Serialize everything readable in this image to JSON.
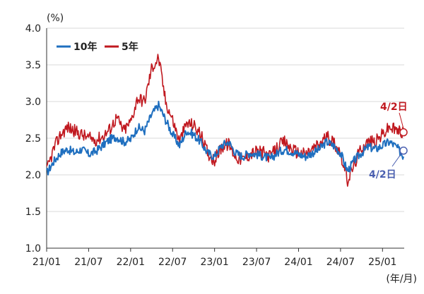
{
  "chart_data": {
    "type": "line",
    "y_unit": "(%)",
    "x_unit": "(年/月)",
    "ylim": [
      1.0,
      4.0
    ],
    "yticks": [
      "1.0",
      "1.5",
      "2.0",
      "2.5",
      "3.0",
      "3.5",
      "4.0"
    ],
    "xticks": [
      "21/01",
      "21/07",
      "22/01",
      "22/07",
      "23/01",
      "23/07",
      "24/01",
      "24/07",
      "25/01"
    ],
    "grid": "horizontal",
    "legend_position": "top-left",
    "series": [
      {
        "name": "10年",
        "color": "#1f6fbf",
        "x": [
          "21/01",
          "21/02",
          "21/03",
          "21/04",
          "21/05",
          "21/06",
          "21/07",
          "21/08",
          "21/09",
          "21/10",
          "21/11",
          "21/12",
          "22/01",
          "22/02",
          "22/03",
          "22/04",
          "22/05",
          "22/06",
          "22/07",
          "22/08",
          "22/09",
          "22/10",
          "22/11",
          "22/12",
          "23/01",
          "23/02",
          "23/03",
          "23/04",
          "23/05",
          "23/06",
          "23/07",
          "23/08",
          "23/09",
          "23/10",
          "23/11",
          "23/12",
          "24/01",
          "24/02",
          "24/03",
          "24/04",
          "24/05",
          "24/06",
          "24/07",
          "24/08",
          "24/09",
          "24/10",
          "24/11",
          "24/12",
          "25/01",
          "25/02",
          "25/03",
          "25/04"
        ],
        "values": [
          2.02,
          2.18,
          2.3,
          2.35,
          2.3,
          2.35,
          2.28,
          2.32,
          2.4,
          2.48,
          2.52,
          2.45,
          2.48,
          2.65,
          2.6,
          2.82,
          2.95,
          2.75,
          2.55,
          2.4,
          2.6,
          2.55,
          2.45,
          2.3,
          2.25,
          2.4,
          2.45,
          2.3,
          2.25,
          2.3,
          2.28,
          2.25,
          2.22,
          2.3,
          2.35,
          2.32,
          2.28,
          2.25,
          2.3,
          2.35,
          2.45,
          2.4,
          2.3,
          2.05,
          2.2,
          2.3,
          2.38,
          2.35,
          2.4,
          2.45,
          2.38,
          2.25
        ]
      },
      {
        "name": "5年",
        "color": "#c0181f",
        "x": [
          "21/01",
          "21/02",
          "21/03",
          "21/04",
          "21/05",
          "21/06",
          "21/07",
          "21/08",
          "21/09",
          "21/10",
          "21/11",
          "21/12",
          "22/01",
          "22/02",
          "22/03",
          "22/04",
          "22/05",
          "22/06",
          "22/07",
          "22/08",
          "22/09",
          "22/10",
          "22/11",
          "22/12",
          "23/01",
          "23/02",
          "23/03",
          "23/04",
          "23/05",
          "23/06",
          "23/07",
          "23/08",
          "23/09",
          "23/10",
          "23/11",
          "23/12",
          "24/01",
          "24/02",
          "24/03",
          "24/04",
          "24/05",
          "24/06",
          "24/07",
          "24/08",
          "24/09",
          "24/10",
          "24/11",
          "24/12",
          "25/01",
          "25/02",
          "25/03",
          "25/04"
        ],
        "values": [
          2.05,
          2.35,
          2.55,
          2.65,
          2.6,
          2.55,
          2.5,
          2.48,
          2.52,
          2.62,
          2.78,
          2.6,
          2.72,
          3.05,
          3.0,
          3.45,
          3.6,
          3.0,
          2.75,
          2.45,
          2.7,
          2.68,
          2.55,
          2.3,
          2.2,
          2.38,
          2.42,
          2.25,
          2.2,
          2.28,
          2.32,
          2.3,
          2.25,
          2.38,
          2.45,
          2.35,
          2.3,
          2.28,
          2.35,
          2.42,
          2.52,
          2.45,
          2.3,
          1.92,
          2.15,
          2.38,
          2.45,
          2.45,
          2.55,
          2.65,
          2.6,
          2.58
        ]
      }
    ],
    "annotations": [
      {
        "text": "4/2日",
        "series": "5年",
        "x": "25/04",
        "y": 2.58,
        "color": "#c0181f"
      },
      {
        "text": "4/2日",
        "series": "10年",
        "x": "25/04",
        "y": 2.33,
        "color": "#4a5fb0"
      }
    ]
  }
}
